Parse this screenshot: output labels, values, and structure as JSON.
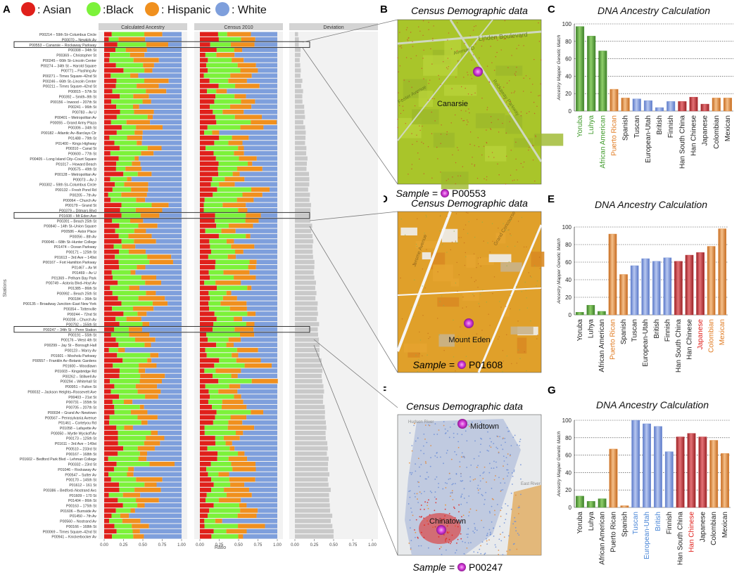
{
  "legend": [
    {
      "label": ": Asian",
      "color": "#e0201b"
    },
    {
      "label": ":Black",
      "color": "#7cf23a"
    },
    {
      "label": ": Hispanic",
      "color": "#f0901e"
    },
    {
      "label": ": White",
      "color": "#7e9fdc"
    }
  ],
  "panel_letters": [
    "A",
    "B",
    "C",
    "D",
    "E",
    "F",
    "G"
  ],
  "panel_a": {
    "facets": [
      "Calculated Ancestry",
      "Census 2010",
      "Deviation"
    ],
    "ylabel": "Stations",
    "xlabel": "Ratio",
    "ticks": [
      "0.00",
      "0.25",
      "0.50",
      "0.75",
      "1.00"
    ],
    "stations": [
      "P00214 – 59th St–Columbus Circle",
      "P00070 – Newkirk Av",
      "P00553 – Canarsie – Rockaway Parkway",
      "P00308 – 34th St",
      "P00369 – Christopher St",
      "P00245 – 66th St–Lincoln Center",
      "P00274 – 34th St – Harold Square",
      "P00771 – Flushing Av",
      "P00271 – Times Square–42nd St",
      "P00246 – 66th St–Lincoln Center",
      "P00211 – Times Square–42nd St",
      "P00815 – 57th St",
      "P00392 – Smith–9th St",
      "P00156 – Inwood – 207th St",
      "P00241 – 96th St",
      "P00783 – Av U",
      "P00401 – Metropolitan Av",
      "P00055 – Grand Army Plaza",
      "P00306 – 34th St",
      "P00182 – Atlantic Av–Barclays Ctr",
      "P01488 – 79th St",
      "P01400 – Kings Highway",
      "P00310 – Canal St",
      "P00600 – 77th St",
      "P00405 – Long Island City–Court Square",
      "P01017 – Howard Beach",
      "P00575 – 49th St",
      "P00128 – Metropolitan Av",
      "P00073 – Av J",
      "P00302 – 59th St–Columbus Circle",
      "P00132 – Fresh Pond Rd",
      "P00205 – 7th Av",
      "P00064 – Church Av",
      "P00179 – Grand St",
      "P00379 – Ditmars Blvd",
      "P01608 – Mt Eden Ave",
      "P00391 – Beach 25th St",
      "P00840 – 14th St–Union Square",
      "P00586 – Astor Place",
      "P00056 – 8th Av",
      "P00046 – 68th St–Hunter College",
      "P01474 – Ocean Parkway",
      "P00171 – 125th St",
      "P01613 – 3rd Ave – 149st",
      "P00167 – Fort Hamilton Parkway",
      "P01467 – Av M",
      "P01469 – Av U",
      "P01369 – Pelham Bay Park",
      "P00749 – Astoria Blvd–Hoyt Av",
      "P01385 – 86th St",
      "P00992 – Beach 25th St",
      "P00184 – 36th St",
      "P00135 – Broadway Junction–East New York",
      "P00354 – Tottenville",
      "P00244 – 72nd St",
      "P00208 – Church Av",
      "P00792 – 155th St",
      "P00247 – 34th St – Penn Station",
      "P00191 – 55th St",
      "P00176 – West 4th St",
      "P00299 – Jay St – Borough Hall",
      "P00123 – Marcy Av",
      "P01601 – Mosholu Parkway",
      "P00557 – Franklin Av–Botanic Gardens",
      "P01600 – Woodlawn",
      "P01603 – Kingsbridge Rd",
      "P00262 – Stillwell Av",
      "P00294 – Whitehall St",
      "P00951 – Fulton St",
      "P00032 – Jackson Heights–Roosevelt Ave",
      "P00403 – 21st St",
      "P00731 – 155th St",
      "P00705 – 207th St",
      "P00034 – Grand Av–Newtown",
      "P00567 – Pennsylvania Avenue",
      "P01461 – Cortelyou Rd",
      "P01058 – Lafayette Av",
      "P00050 – Myrtle Wyckoff Av",
      "P00173 – 125th St",
      "P01611 – 3rd Ave – 149st",
      "P00510 – 233rd St",
      "P00167 – 168th St",
      "P01602 – Bedford Park Blvd – Lehman College",
      "P00332 – 23rd St",
      "P01046 – Rockaway Av",
      "P00547 – Sutter Av",
      "P00170 – 145th St",
      "P01612 – 161 St",
      "P00386 – Bedford–Nostrand Avs",
      "P01609 – 170 St",
      "P01404 – 86th St",
      "P00163 – 175th St",
      "P01606 – Burnside Av",
      "P01450 – 7th Av",
      "P00560 – Nostrand Av",
      "P00166 – 168th St",
      "P00069 – Times Square–42nd St",
      "P00941 – Knickerbocker Av"
    ],
    "highlighted": [
      "P00553 – Canarsie – Rockaway Parkway",
      "P01608 – Mt Eden Ave",
      "P00247 – 34th St – Penn Station"
    ]
  },
  "maps": [
    {
      "title": "Census Demographic data",
      "sample_prefix": "Sample = ",
      "sample_id": "P00553",
      "place": "Canarsie",
      "streets": [
        "Linden Boulevard",
        "Avenue D",
        "Rockaway Parkway",
        "Foster Avenue"
      ]
    },
    {
      "title": "Census Demographic data",
      "sample_prefix": "Sample = ",
      "sample_id": "P01608",
      "place": "Mount Eden",
      "streets": [
        "Grand Concourse",
        "Jerome Avenue"
      ]
    },
    {
      "title": "Census Demographic data",
      "sample_prefix": "Sample = ",
      "sample_id": "P00247",
      "place": "Chinatown",
      "places": [
        "Midtown",
        "Chinatown"
      ],
      "streets": [
        "Hudson River",
        "East River"
      ]
    }
  ],
  "chart_data": [
    {
      "type": "bar",
      "title": "DNA Ancestry Calculation",
      "ylabel": "Ancestry Mapper Genetic Match",
      "ylim": [
        0,
        100
      ],
      "yticks": [
        0,
        20,
        40,
        60,
        80,
        100
      ],
      "categories": [
        "Yoruba",
        "Luhya",
        "African American",
        "Puerto Rican",
        "Spanish",
        "Tuscan",
        "European-Utah",
        "British",
        "Finnish",
        "Han South China",
        "Han Chinese",
        "Japanese",
        "Colombian",
        "Mexican"
      ],
      "values": [
        97,
        86,
        69,
        25,
        15,
        14,
        12,
        4,
        11,
        11,
        16,
        8,
        15,
        15
      ],
      "bar_colors": [
        "#4f9a35",
        "#4f9a35",
        "#4f9a35",
        "#e38a3a",
        "#e38a3a",
        "#7a97d9",
        "#7a97d9",
        "#7a97d9",
        "#7a97d9",
        "#c13a3e",
        "#c13a3e",
        "#c13a3e",
        "#e38a3a",
        "#e38a3a"
      ],
      "label_colors": [
        "#3f9a2a",
        "#3f9a2a",
        "#3f9a2a",
        "#e07b22",
        "#222222",
        "#222222",
        "#222222",
        "#222222",
        "#222222",
        "#222222",
        "#222222",
        "#222222",
        "#222222",
        "#222222"
      ]
    },
    {
      "type": "bar",
      "title": "DNA Ancestry Calculation",
      "ylabel": "Ancestry Mapper Genetic Match",
      "ylim": [
        0,
        100
      ],
      "yticks": [
        0,
        20,
        40,
        60,
        80,
        100
      ],
      "categories": [
        "Yoruba",
        "Luhya",
        "African American",
        "Puerto Rican",
        "Spanish",
        "Tuscan",
        "European-Utah",
        "British",
        "Finnish",
        "Han South China",
        "Han Chinese",
        "Japanese",
        "Colombian",
        "Mexican"
      ],
      "values": [
        3,
        11,
        4,
        92,
        46,
        56,
        64,
        61,
        65,
        61,
        68,
        71,
        78,
        98
      ],
      "bar_colors": [
        "#4f9a35",
        "#4f9a35",
        "#4f9a35",
        "#e38a3a",
        "#e38a3a",
        "#7a97d9",
        "#7a97d9",
        "#7a97d9",
        "#7a97d9",
        "#c13a3e",
        "#c13a3e",
        "#c13a3e",
        "#e38a3a",
        "#e38a3a"
      ],
      "label_colors": [
        "#222222",
        "#222222",
        "#222222",
        "#e07b22",
        "#222222",
        "#222222",
        "#222222",
        "#222222",
        "#222222",
        "#222222",
        "#222222",
        "#e0201b",
        "#e07b22",
        "#e07b22"
      ]
    },
    {
      "type": "bar",
      "title": "DNA Ancestry Calculation",
      "ylabel": "Ancestry Mapper Genetic Match",
      "ylim": [
        0,
        100
      ],
      "yticks": [
        0,
        20,
        40,
        60,
        80,
        100
      ],
      "categories": [
        "Yoruba",
        "Luhya",
        "African American",
        "Puerto Rican",
        "Spanish",
        "Tuscan",
        "European-Utah",
        "British",
        "Finnish",
        "Han South China",
        "Han Chinese",
        "Japanese",
        "Colombian",
        "Mexican"
      ],
      "values": [
        13,
        7,
        10,
        67,
        2,
        100,
        96,
        93,
        64,
        81,
        85,
        81,
        77,
        62
      ],
      "bar_colors": [
        "#4f9a35",
        "#4f9a35",
        "#4f9a35",
        "#e38a3a",
        "#e38a3a",
        "#7a97d9",
        "#7a97d9",
        "#7a97d9",
        "#7a97d9",
        "#c13a3e",
        "#c13a3e",
        "#c13a3e",
        "#e38a3a",
        "#e38a3a"
      ],
      "label_colors": [
        "#222222",
        "#222222",
        "#222222",
        "#222222",
        "#222222",
        "#4a86d6",
        "#4a86d6",
        "#4a86d6",
        "#222222",
        "#222222",
        "#e0201b",
        "#222222",
        "#222222",
        "#222222"
      ]
    }
  ]
}
